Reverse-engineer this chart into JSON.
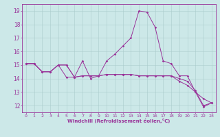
{
  "title": "",
  "xlabel": "Windchill (Refroidissement éolien,°C)",
  "ylabel": "",
  "bg_color": "#cce8e8",
  "line_color": "#993399",
  "grid_color": "#aacccc",
  "xlim": [
    -0.5,
    23.5
  ],
  "ylim": [
    11.5,
    19.5
  ],
  "xticks": [
    0,
    1,
    2,
    3,
    4,
    5,
    6,
    7,
    8,
    9,
    10,
    11,
    12,
    13,
    14,
    15,
    16,
    17,
    18,
    19,
    20,
    21,
    22,
    23
  ],
  "yticks": [
    12,
    13,
    14,
    15,
    16,
    17,
    18,
    19
  ],
  "series1": [
    [
      0,
      15.1
    ],
    [
      1,
      15.1
    ],
    [
      2,
      14.5
    ],
    [
      3,
      14.5
    ],
    [
      4,
      15.0
    ],
    [
      5,
      15.0
    ],
    [
      6,
      14.1
    ],
    [
      7,
      15.3
    ],
    [
      8,
      14.0
    ],
    [
      9,
      14.2
    ],
    [
      10,
      15.3
    ],
    [
      11,
      15.8
    ],
    [
      12,
      16.4
    ],
    [
      13,
      17.0
    ],
    [
      14,
      19.0
    ],
    [
      15,
      18.9
    ],
    [
      16,
      17.8
    ],
    [
      17,
      15.3
    ],
    [
      18,
      15.1
    ],
    [
      19,
      14.2
    ],
    [
      20,
      14.2
    ],
    [
      21,
      13.0
    ],
    [
      22,
      11.9
    ],
    [
      23,
      12.2
    ]
  ],
  "series2": [
    [
      0,
      15.1
    ],
    [
      1,
      15.1
    ],
    [
      2,
      14.5
    ],
    [
      3,
      14.5
    ],
    [
      4,
      15.0
    ],
    [
      5,
      14.1
    ],
    [
      6,
      14.1
    ],
    [
      7,
      14.2
    ],
    [
      8,
      14.2
    ],
    [
      9,
      14.2
    ],
    [
      10,
      14.3
    ],
    [
      11,
      14.3
    ],
    [
      12,
      14.3
    ],
    [
      13,
      14.3
    ],
    [
      14,
      14.2
    ],
    [
      15,
      14.2
    ],
    [
      16,
      14.2
    ],
    [
      17,
      14.2
    ],
    [
      18,
      14.2
    ],
    [
      19,
      14.0
    ],
    [
      20,
      13.8
    ],
    [
      21,
      13.1
    ],
    [
      22,
      12.0
    ],
    [
      23,
      12.2
    ]
  ],
  "series3": [
    [
      0,
      15.1
    ],
    [
      1,
      15.1
    ],
    [
      2,
      14.5
    ],
    [
      3,
      14.5
    ],
    [
      4,
      15.0
    ],
    [
      5,
      15.0
    ],
    [
      6,
      14.1
    ],
    [
      7,
      14.2
    ],
    [
      8,
      14.2
    ],
    [
      9,
      14.2
    ],
    [
      10,
      14.3
    ],
    [
      11,
      14.3
    ],
    [
      12,
      14.3
    ],
    [
      13,
      14.3
    ],
    [
      14,
      14.2
    ],
    [
      15,
      14.2
    ],
    [
      16,
      14.2
    ],
    [
      17,
      14.2
    ],
    [
      18,
      14.2
    ],
    [
      19,
      13.8
    ],
    [
      20,
      13.5
    ],
    [
      21,
      13.0
    ],
    [
      22,
      12.5
    ],
    [
      23,
      12.2
    ]
  ]
}
